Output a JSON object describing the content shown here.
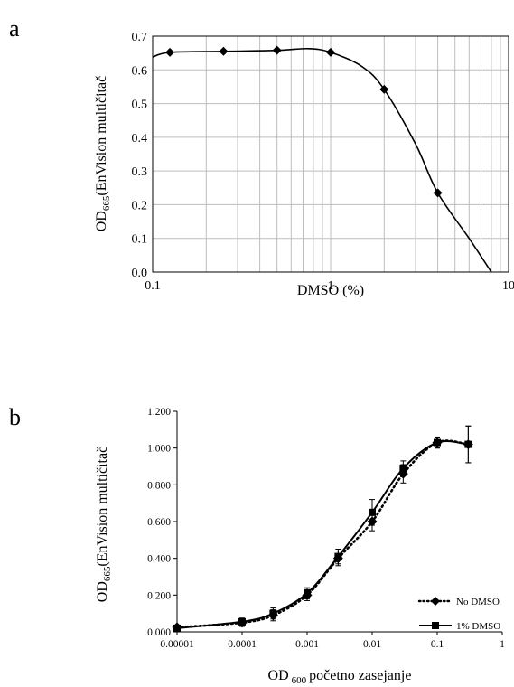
{
  "chart_data": [
    {
      "panel_label": "a",
      "type": "scatter",
      "xscale": "log",
      "xlim": [
        0.1,
        10
      ],
      "ylim": [
        0,
        0.7
      ],
      "xticks": [
        "0.1",
        "1",
        "10"
      ],
      "yticks": [
        "0.0",
        "0.1",
        "0.2",
        "0.3",
        "0.4",
        "0.5",
        "0.6",
        "0.7"
      ],
      "xlabel": "DMSO  (%)",
      "ylabel_main": "OD",
      "ylabel_sub": "665",
      "ylabel_rest": "(EnVision multičitač",
      "grid": true,
      "series": [
        {
          "x": [
            0.125,
            0.25,
            0.5,
            1,
            2,
            4
          ],
          "y": [
            0.652,
            0.655,
            0.658,
            0.652,
            0.542,
            0.235
          ]
        }
      ],
      "curve": {
        "x": [
          0.1,
          0.125,
          0.25,
          0.5,
          0.75,
          1,
          1.5,
          2,
          3,
          4,
          6,
          8
        ],
        "y": [
          0.638,
          0.652,
          0.655,
          0.658,
          0.663,
          0.652,
          0.61,
          0.542,
          0.38,
          0.235,
          0.1,
          0.0
        ]
      }
    },
    {
      "panel_label": "b",
      "type": "line",
      "xscale": "log",
      "xlim": [
        1e-05,
        1
      ],
      "ylim": [
        0,
        1.2
      ],
      "xticks": [
        "0.00001",
        "0.0001",
        "0.001",
        "0.01",
        "0.1",
        "1"
      ],
      "yticks": [
        "0.000",
        "0.200",
        "0.400",
        "0.600",
        "0.800",
        "1.000",
        "1.200"
      ],
      "xlabel_main": "OD",
      "xlabel_sub": "600",
      "xlabel_rest": "početno zasejanje",
      "ylabel_main": "OD",
      "ylabel_sub": "665",
      "ylabel_rest": "(EnVision multičitač",
      "legend_position": "bottom-right",
      "series": [
        {
          "name": "No DMSO",
          "style": "dotted",
          "marker": "diamond",
          "x": [
            1e-05,
            0.0001,
            0.0003,
            0.001,
            0.003,
            0.01,
            0.03,
            0.1,
            0.3
          ],
          "y": [
            0.025,
            0.05,
            0.09,
            0.2,
            0.4,
            0.6,
            0.86,
            1.03,
            1.02
          ],
          "err": [
            0.01,
            0.02,
            0.03,
            0.03,
            0.04,
            0.05,
            0.05,
            0.03,
            0.1
          ]
        },
        {
          "name": "1% DMSO",
          "style": "solid",
          "marker": "square",
          "x": [
            1e-05,
            0.0001,
            0.0003,
            0.001,
            0.003,
            0.01,
            0.03,
            0.1,
            0.3
          ],
          "y": [
            0.02,
            0.055,
            0.1,
            0.21,
            0.41,
            0.65,
            0.89,
            1.03,
            1.02
          ],
          "err": [
            0.01,
            0.02,
            0.03,
            0.03,
            0.04,
            0.07,
            0.04,
            0.03,
            0.1
          ]
        }
      ]
    }
  ]
}
